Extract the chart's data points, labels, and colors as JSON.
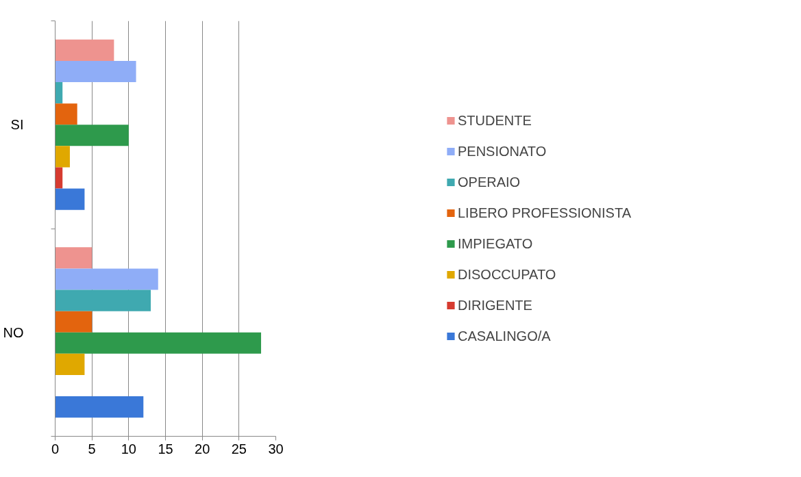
{
  "chart_data": {
    "type": "bar",
    "orientation": "horizontal",
    "categories": [
      "SI",
      "NO"
    ],
    "series": [
      {
        "name": "STUDENTE",
        "color": "#ee938f",
        "values": [
          8,
          5
        ]
      },
      {
        "name": "PENSIONATO",
        "color": "#8fadf7",
        "values": [
          11,
          14
        ]
      },
      {
        "name": "OPERAIO",
        "color": "#3fa9b0",
        "values": [
          1,
          13
        ]
      },
      {
        "name": "LIBERO PROFESSIONISTA",
        "color": "#e3640e",
        "values": [
          3,
          5
        ]
      },
      {
        "name": "IMPIEGATO",
        "color": "#2e9a4c",
        "values": [
          10,
          28
        ]
      },
      {
        "name": "DISOCCUPATO",
        "color": "#e0a800",
        "values": [
          2,
          4
        ]
      },
      {
        "name": "DIRIGENTE",
        "color": "#d63b30",
        "values": [
          1,
          null
        ]
      },
      {
        "name": "CASALINGO/A",
        "color": "#3a78d8",
        "values": [
          4,
          12
        ]
      }
    ],
    "xlim": [
      0,
      30
    ],
    "xticks": [
      0,
      5,
      10,
      15,
      20,
      25,
      30
    ],
    "grid": "x",
    "legend": "right"
  }
}
